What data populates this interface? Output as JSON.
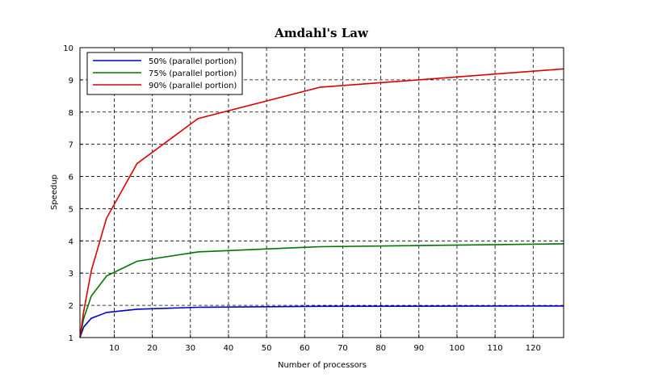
{
  "chart_data": {
    "type": "line",
    "title": "Amdahl's Law",
    "xlabel": "Number of processors",
    "ylabel": "Speedup",
    "xlim": [
      1,
      128
    ],
    "ylim": [
      1,
      10
    ],
    "xticks": [
      10,
      20,
      30,
      40,
      50,
      60,
      70,
      80,
      90,
      100,
      110,
      120
    ],
    "yticks": [
      1,
      2,
      3,
      4,
      5,
      6,
      7,
      8,
      9,
      10
    ],
    "grid": true,
    "legend_position": "top-left",
    "x": [
      1,
      2,
      4,
      8,
      16,
      32,
      64,
      128
    ],
    "series": [
      {
        "name": "50% (parallel portion)",
        "color": "#0000cc",
        "values": [
          1.0,
          1.33,
          1.6,
          1.78,
          1.88,
          1.94,
          1.97,
          1.98
        ]
      },
      {
        "name": "75% (parallel portion)",
        "color": "#007700",
        "values": [
          1.0,
          1.6,
          2.29,
          2.91,
          3.37,
          3.66,
          3.82,
          3.91
        ]
      },
      {
        "name": "90% (parallel portion)",
        "color": "#dd0000",
        "values": [
          1.0,
          1.82,
          3.08,
          4.71,
          6.4,
          7.8,
          8.77,
          9.34
        ]
      }
    ]
  }
}
